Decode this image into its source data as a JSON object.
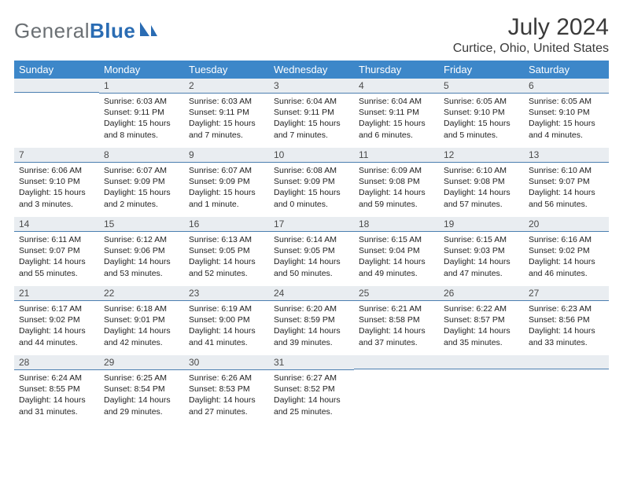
{
  "logo": {
    "general": "General",
    "blue": "Blue"
  },
  "header": {
    "title": "July 2024",
    "location": "Curtice, Ohio, United States"
  },
  "colors": {
    "header_bg": "#3d87c9",
    "header_text": "#ffffff",
    "daybar_bg": "#e9edf1",
    "daybar_border": "#4b7fb0",
    "body_text": "#222222",
    "logo_general": "#6b7074",
    "logo_blue": "#2a6cb3"
  },
  "day_headers": [
    "Sunday",
    "Monday",
    "Tuesday",
    "Wednesday",
    "Thursday",
    "Friday",
    "Saturday"
  ],
  "weeks": [
    [
      {
        "num": "",
        "sunrise": "",
        "sunset": "",
        "daylight": ""
      },
      {
        "num": "1",
        "sunrise": "Sunrise: 6:03 AM",
        "sunset": "Sunset: 9:11 PM",
        "daylight": "Daylight: 15 hours and 8 minutes."
      },
      {
        "num": "2",
        "sunrise": "Sunrise: 6:03 AM",
        "sunset": "Sunset: 9:11 PM",
        "daylight": "Daylight: 15 hours and 7 minutes."
      },
      {
        "num": "3",
        "sunrise": "Sunrise: 6:04 AM",
        "sunset": "Sunset: 9:11 PM",
        "daylight": "Daylight: 15 hours and 7 minutes."
      },
      {
        "num": "4",
        "sunrise": "Sunrise: 6:04 AM",
        "sunset": "Sunset: 9:11 PM",
        "daylight": "Daylight: 15 hours and 6 minutes."
      },
      {
        "num": "5",
        "sunrise": "Sunrise: 6:05 AM",
        "sunset": "Sunset: 9:10 PM",
        "daylight": "Daylight: 15 hours and 5 minutes."
      },
      {
        "num": "6",
        "sunrise": "Sunrise: 6:05 AM",
        "sunset": "Sunset: 9:10 PM",
        "daylight": "Daylight: 15 hours and 4 minutes."
      }
    ],
    [
      {
        "num": "7",
        "sunrise": "Sunrise: 6:06 AM",
        "sunset": "Sunset: 9:10 PM",
        "daylight": "Daylight: 15 hours and 3 minutes."
      },
      {
        "num": "8",
        "sunrise": "Sunrise: 6:07 AM",
        "sunset": "Sunset: 9:09 PM",
        "daylight": "Daylight: 15 hours and 2 minutes."
      },
      {
        "num": "9",
        "sunrise": "Sunrise: 6:07 AM",
        "sunset": "Sunset: 9:09 PM",
        "daylight": "Daylight: 15 hours and 1 minute."
      },
      {
        "num": "10",
        "sunrise": "Sunrise: 6:08 AM",
        "sunset": "Sunset: 9:09 PM",
        "daylight": "Daylight: 15 hours and 0 minutes."
      },
      {
        "num": "11",
        "sunrise": "Sunrise: 6:09 AM",
        "sunset": "Sunset: 9:08 PM",
        "daylight": "Daylight: 14 hours and 59 minutes."
      },
      {
        "num": "12",
        "sunrise": "Sunrise: 6:10 AM",
        "sunset": "Sunset: 9:08 PM",
        "daylight": "Daylight: 14 hours and 57 minutes."
      },
      {
        "num": "13",
        "sunrise": "Sunrise: 6:10 AM",
        "sunset": "Sunset: 9:07 PM",
        "daylight": "Daylight: 14 hours and 56 minutes."
      }
    ],
    [
      {
        "num": "14",
        "sunrise": "Sunrise: 6:11 AM",
        "sunset": "Sunset: 9:07 PM",
        "daylight": "Daylight: 14 hours and 55 minutes."
      },
      {
        "num": "15",
        "sunrise": "Sunrise: 6:12 AM",
        "sunset": "Sunset: 9:06 PM",
        "daylight": "Daylight: 14 hours and 53 minutes."
      },
      {
        "num": "16",
        "sunrise": "Sunrise: 6:13 AM",
        "sunset": "Sunset: 9:05 PM",
        "daylight": "Daylight: 14 hours and 52 minutes."
      },
      {
        "num": "17",
        "sunrise": "Sunrise: 6:14 AM",
        "sunset": "Sunset: 9:05 PM",
        "daylight": "Daylight: 14 hours and 50 minutes."
      },
      {
        "num": "18",
        "sunrise": "Sunrise: 6:15 AM",
        "sunset": "Sunset: 9:04 PM",
        "daylight": "Daylight: 14 hours and 49 minutes."
      },
      {
        "num": "19",
        "sunrise": "Sunrise: 6:15 AM",
        "sunset": "Sunset: 9:03 PM",
        "daylight": "Daylight: 14 hours and 47 minutes."
      },
      {
        "num": "20",
        "sunrise": "Sunrise: 6:16 AM",
        "sunset": "Sunset: 9:02 PM",
        "daylight": "Daylight: 14 hours and 46 minutes."
      }
    ],
    [
      {
        "num": "21",
        "sunrise": "Sunrise: 6:17 AM",
        "sunset": "Sunset: 9:02 PM",
        "daylight": "Daylight: 14 hours and 44 minutes."
      },
      {
        "num": "22",
        "sunrise": "Sunrise: 6:18 AM",
        "sunset": "Sunset: 9:01 PM",
        "daylight": "Daylight: 14 hours and 42 minutes."
      },
      {
        "num": "23",
        "sunrise": "Sunrise: 6:19 AM",
        "sunset": "Sunset: 9:00 PM",
        "daylight": "Daylight: 14 hours and 41 minutes."
      },
      {
        "num": "24",
        "sunrise": "Sunrise: 6:20 AM",
        "sunset": "Sunset: 8:59 PM",
        "daylight": "Daylight: 14 hours and 39 minutes."
      },
      {
        "num": "25",
        "sunrise": "Sunrise: 6:21 AM",
        "sunset": "Sunset: 8:58 PM",
        "daylight": "Daylight: 14 hours and 37 minutes."
      },
      {
        "num": "26",
        "sunrise": "Sunrise: 6:22 AM",
        "sunset": "Sunset: 8:57 PM",
        "daylight": "Daylight: 14 hours and 35 minutes."
      },
      {
        "num": "27",
        "sunrise": "Sunrise: 6:23 AM",
        "sunset": "Sunset: 8:56 PM",
        "daylight": "Daylight: 14 hours and 33 minutes."
      }
    ],
    [
      {
        "num": "28",
        "sunrise": "Sunrise: 6:24 AM",
        "sunset": "Sunset: 8:55 PM",
        "daylight": "Daylight: 14 hours and 31 minutes."
      },
      {
        "num": "29",
        "sunrise": "Sunrise: 6:25 AM",
        "sunset": "Sunset: 8:54 PM",
        "daylight": "Daylight: 14 hours and 29 minutes."
      },
      {
        "num": "30",
        "sunrise": "Sunrise: 6:26 AM",
        "sunset": "Sunset: 8:53 PM",
        "daylight": "Daylight: 14 hours and 27 minutes."
      },
      {
        "num": "31",
        "sunrise": "Sunrise: 6:27 AM",
        "sunset": "Sunset: 8:52 PM",
        "daylight": "Daylight: 14 hours and 25 minutes."
      },
      {
        "num": "",
        "sunrise": "",
        "sunset": "",
        "daylight": ""
      },
      {
        "num": "",
        "sunrise": "",
        "sunset": "",
        "daylight": ""
      },
      {
        "num": "",
        "sunrise": "",
        "sunset": "",
        "daylight": ""
      }
    ]
  ]
}
